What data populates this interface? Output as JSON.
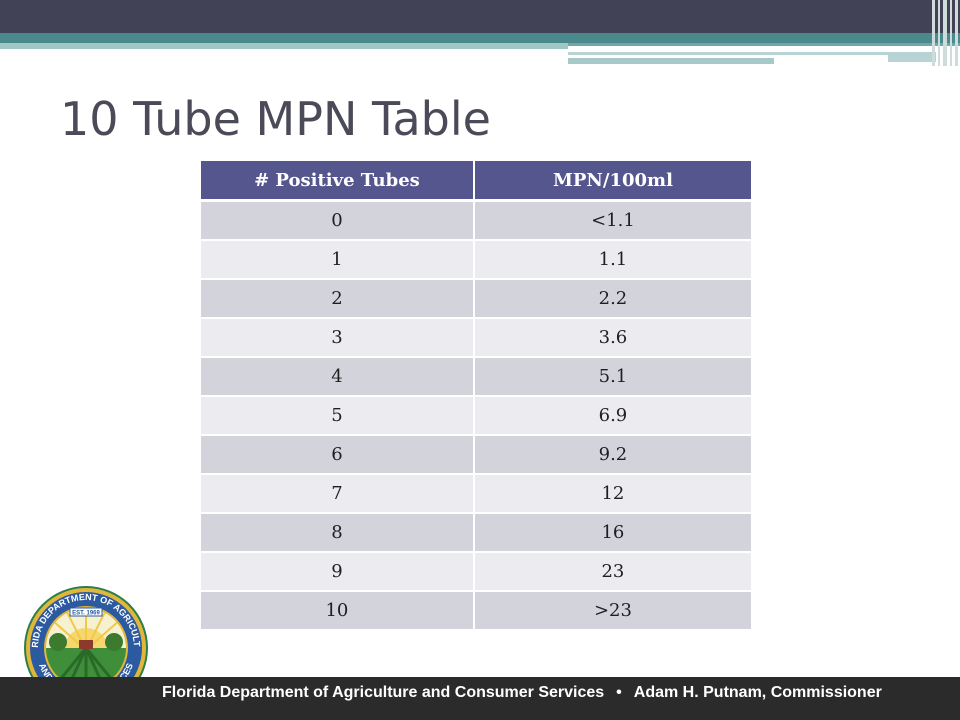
{
  "slide": {
    "title": "10 Tube MPN Table"
  },
  "table": {
    "headers": [
      "# Positive Tubes",
      "MPN/100ml"
    ],
    "rows": [
      [
        "0",
        "<1.1"
      ],
      [
        "1",
        "1.1"
      ],
      [
        "2",
        "2.2"
      ],
      [
        "3",
        "3.6"
      ],
      [
        "4",
        "5.1"
      ],
      [
        "5",
        "6.9"
      ],
      [
        "6",
        "9.2"
      ],
      [
        "7",
        "12"
      ],
      [
        "8",
        "16"
      ],
      [
        "9",
        "23"
      ],
      [
        "10",
        ">23"
      ]
    ]
  },
  "seal": {
    "top_text": "FLORIDA DEPARTMENT OF AGRICULTURE",
    "bottom_text": "AND CONSUMER SERVICES",
    "est": "EST. 1969"
  },
  "footer": {
    "left": "Florida Department of Agriculture and Consumer Services",
    "separator": "•",
    "right": "Adam H. Putnam, Commissioner"
  },
  "colors": {
    "header_bg": "#55568e",
    "row_odd": "#d3d3dc",
    "row_even": "#ebebf0",
    "top_bar": "#424257",
    "teal": "#4a8a8c",
    "footer_bg": "#2b2b2b"
  }
}
